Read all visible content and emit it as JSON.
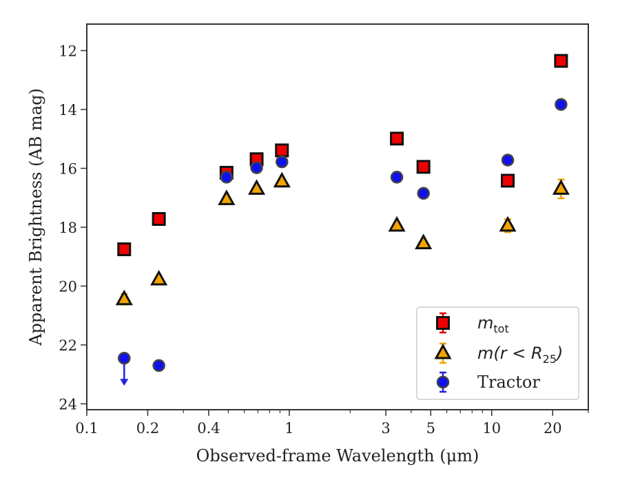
{
  "chart_data": {
    "type": "scatter",
    "xlabel": "Observed-frame Wavelength (μm)",
    "ylabel": "Apparent Brightness (AB mag)",
    "x_scale": "log",
    "xlim": [
      0.1,
      30
    ],
    "ylim": [
      24.2,
      11.1
    ],
    "y_inverted": true,
    "x_ticks": [
      0.1,
      0.2,
      0.4,
      1,
      3,
      5,
      10,
      20
    ],
    "x_tick_labels": [
      "0.1",
      "0.2",
      "0.4",
      "1",
      "3",
      "5",
      "10",
      "20"
    ],
    "y_ticks": [
      12,
      14,
      16,
      18,
      20,
      22,
      24
    ],
    "y_tick_labels": [
      "12",
      "14",
      "16",
      "18",
      "20",
      "22",
      "24"
    ],
    "legend_position": "lower-right",
    "grid": false,
    "series": [
      {
        "name": "m_tot",
        "legend_text": "m",
        "legend_sub": "tot",
        "marker": "square",
        "color": "#ee0000",
        "edge_color": "#111111",
        "error_color": "#dd0000",
        "points": [
          {
            "x": 0.153,
            "y": 18.75,
            "err": 0.1
          },
          {
            "x": 0.227,
            "y": 17.72,
            "err": 0.08
          },
          {
            "x": 0.49,
            "y": 16.15,
            "err": 0.1
          },
          {
            "x": 0.69,
            "y": 15.69,
            "err": 0.08
          },
          {
            "x": 0.92,
            "y": 15.39,
            "err": 0.08
          },
          {
            "x": 3.4,
            "y": 14.99,
            "err": 0.08
          },
          {
            "x": 4.6,
            "y": 15.95,
            "err": 0.08
          },
          {
            "x": 12.0,
            "y": 16.42,
            "err": 0.1
          },
          {
            "x": 22.0,
            "y": 12.35,
            "err": 0.1
          }
        ]
      },
      {
        "name": "m(r < R_25)",
        "legend_text": "m(r < R",
        "legend_sub": "25",
        "legend_tail": ")",
        "marker": "triangle",
        "color": "#f4a300",
        "edge_color": "#111111",
        "error_color": "#f0a000",
        "points": [
          {
            "x": 0.153,
            "y": 20.45,
            "err": 0.18
          },
          {
            "x": 0.227,
            "y": 19.78,
            "err": 0.08
          },
          {
            "x": 0.49,
            "y": 17.05,
            "err": 0.06
          },
          {
            "x": 0.69,
            "y": 16.7,
            "err": 0.06
          },
          {
            "x": 0.92,
            "y": 16.45,
            "err": 0.06
          },
          {
            "x": 3.4,
            "y": 17.95,
            "err": 0.06
          },
          {
            "x": 4.6,
            "y": 18.55,
            "err": 0.06
          },
          {
            "x": 12.0,
            "y": 17.95,
            "err": 0.22
          },
          {
            "x": 22.0,
            "y": 16.7,
            "err": 0.32
          }
        ]
      },
      {
        "name": "Tractor",
        "legend_text": "Tractor",
        "marker": "circle",
        "color": "#1010ee",
        "edge_color": "#444444",
        "error_color": "#2222dd",
        "points": [
          {
            "x": 0.153,
            "y": 22.45,
            "err": 0.0,
            "upper_limit": true
          },
          {
            "x": 0.227,
            "y": 22.7,
            "err": 0.05
          },
          {
            "x": 0.49,
            "y": 16.3,
            "err": 0.05
          },
          {
            "x": 0.69,
            "y": 15.98,
            "err": 0.05
          },
          {
            "x": 0.92,
            "y": 15.78,
            "err": 0.05
          },
          {
            "x": 3.4,
            "y": 16.3,
            "err": 0.05
          },
          {
            "x": 4.6,
            "y": 16.85,
            "err": 0.05
          },
          {
            "x": 12.0,
            "y": 15.72,
            "err": 0.05
          },
          {
            "x": 22.0,
            "y": 13.83,
            "err": 0.05
          }
        ]
      }
    ]
  }
}
